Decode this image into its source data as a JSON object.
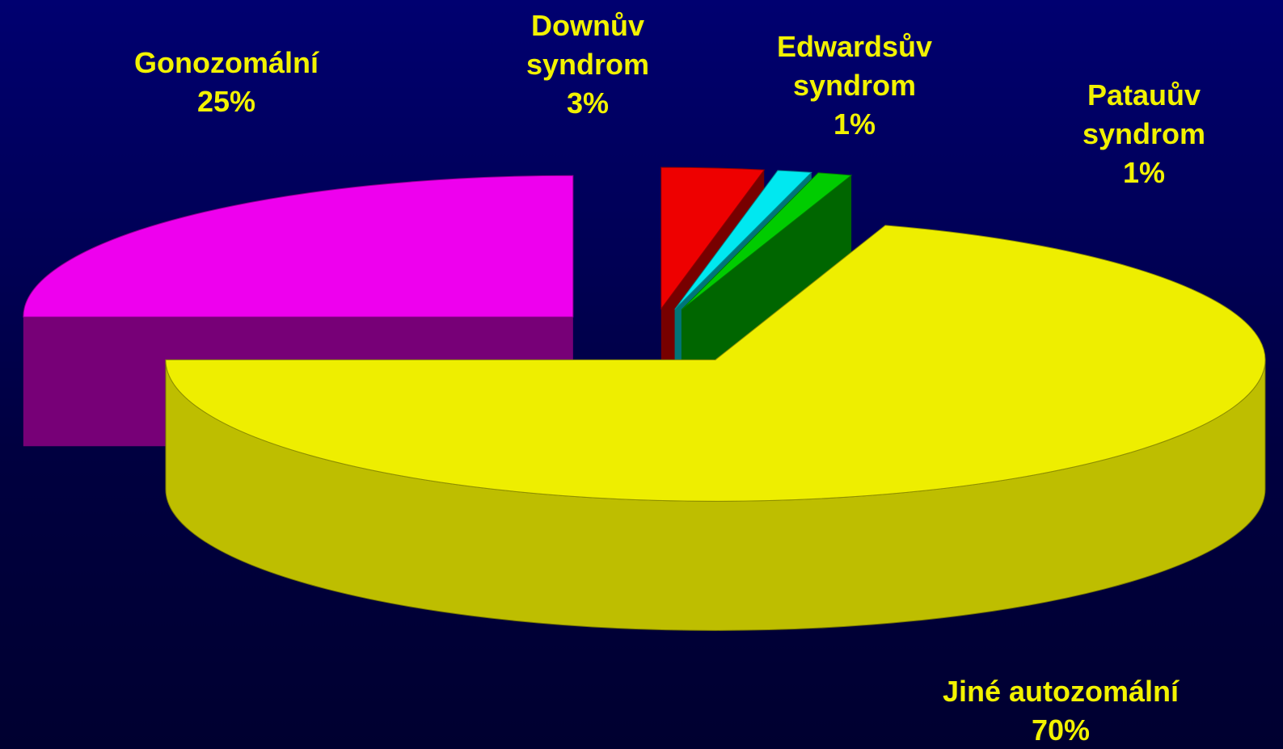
{
  "chart_data": {
    "type": "pie",
    "categories": [
      "Downův syndrom",
      "Edwardsův syndrom",
      "Patauův syndrom",
      "Jiné autozomální",
      "Gonozomální"
    ],
    "values": [
      3,
      1,
      1,
      70,
      25
    ],
    "value_labels": [
      "3%",
      "1%",
      "1%",
      "70%",
      "25%"
    ],
    "colors": [
      "#ee0000",
      "#00e8f0",
      "#00cc00",
      "#eeee00",
      "#ee00ee"
    ]
  }
}
